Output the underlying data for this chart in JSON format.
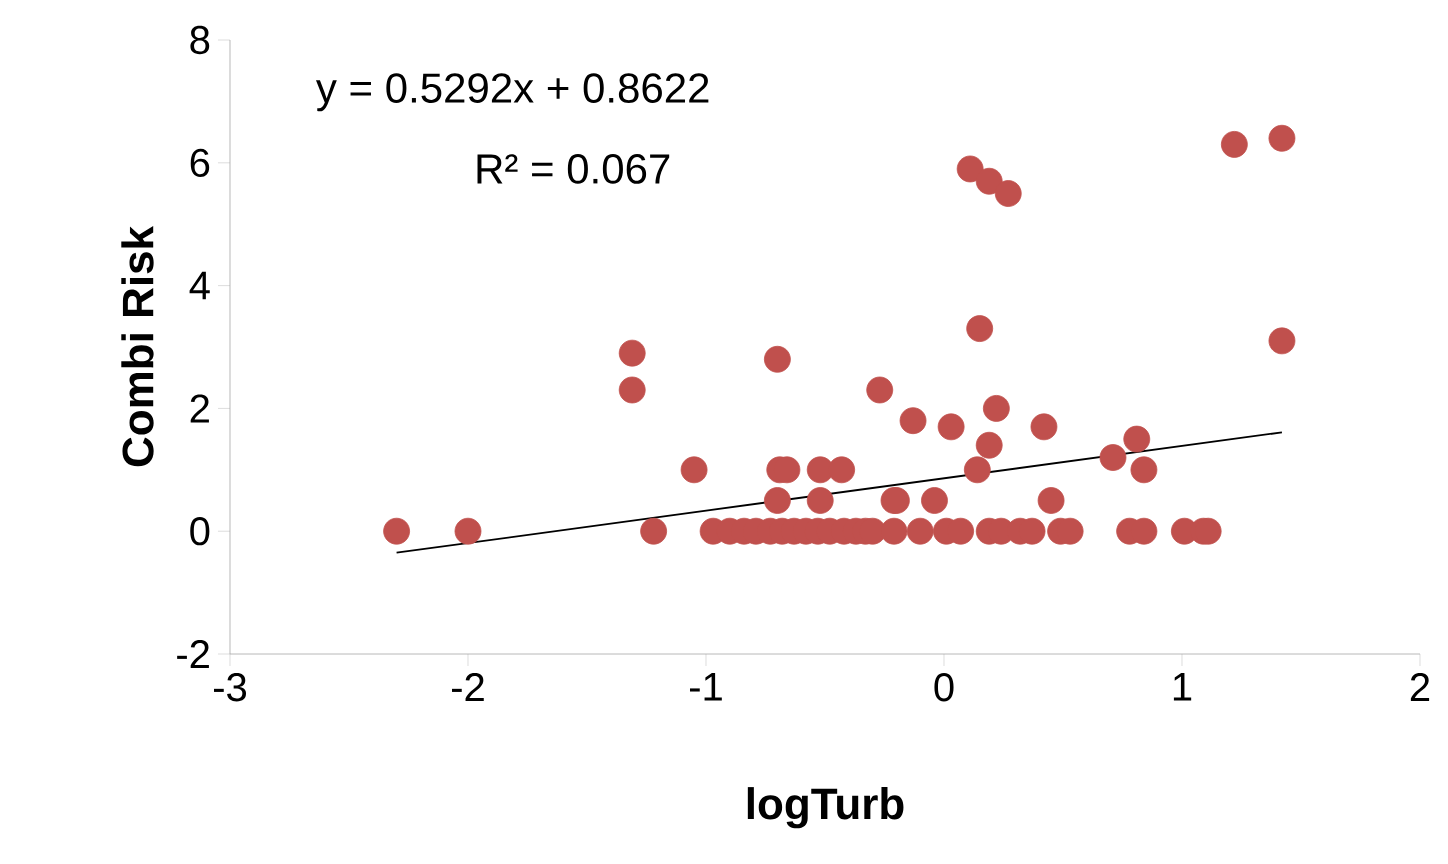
{
  "chart_data": {
    "type": "scatter",
    "xlabel": "logTurb",
    "ylabel": "Combi Risk",
    "xlim": [
      -3,
      2
    ],
    "ylim": [
      -2,
      8
    ],
    "xticks": [
      -3,
      -2,
      -1,
      0,
      1,
      2
    ],
    "yticks": [
      -2,
      0,
      2,
      4,
      6,
      8
    ],
    "grid": false,
    "marker": "circle",
    "annotations": [
      "y = 0.5292x + 0.8622",
      "R² = 0.067"
    ],
    "series": [
      {
        "color": "#c0504d",
        "x": [
          -2.3,
          -2.0,
          -1.31,
          -1.31,
          -1.22,
          -1.05,
          -0.7,
          -0.7,
          -0.69,
          -0.66,
          -0.52,
          -0.43,
          -0.52,
          -0.27,
          -0.13,
          -0.2,
          -0.97,
          -0.9,
          -0.84,
          -0.79,
          -0.73,
          -0.68,
          -0.63,
          -0.58,
          -0.53,
          -0.48,
          -0.42,
          -0.37,
          -0.33,
          -0.3,
          -0.21,
          -0.1,
          0.01,
          0.07,
          0.19,
          0.24,
          0.32,
          0.37,
          0.49,
          0.53,
          0.78,
          0.84,
          1.01,
          1.09,
          1.11,
          0.15,
          1.42,
          0.03,
          0.22,
          0.42,
          0.19,
          0.14,
          0.71,
          0.81,
          0.84,
          -0.21,
          -0.04,
          0.45,
          0.11,
          0.19,
          0.27,
          1.22,
          1.42
        ],
        "values": [
          0,
          0,
          2.9,
          2.3,
          0,
          1.0,
          2.8,
          0.5,
          1.0,
          1.0,
          1.0,
          1.0,
          0.5,
          2.3,
          1.8,
          0.5,
          0,
          0,
          0,
          0,
          0,
          0,
          0,
          0,
          0,
          0,
          0,
          0,
          0,
          0,
          0,
          0,
          0,
          0,
          0,
          0,
          0,
          0,
          0,
          0,
          0,
          0,
          0,
          0,
          0,
          3.3,
          3.1,
          1.7,
          2.0,
          1.7,
          1.4,
          1.0,
          1.2,
          1.5,
          1.0,
          0.5,
          0.5,
          0.5,
          5.9,
          5.7,
          5.5,
          6.3,
          6.4
        ]
      },
      {
        "type": "line",
        "color": "#000000",
        "marker": "none",
        "x": [
          -2.3,
          1.42
        ],
        "values": [
          -0.35,
          1.61
        ]
      }
    ]
  }
}
